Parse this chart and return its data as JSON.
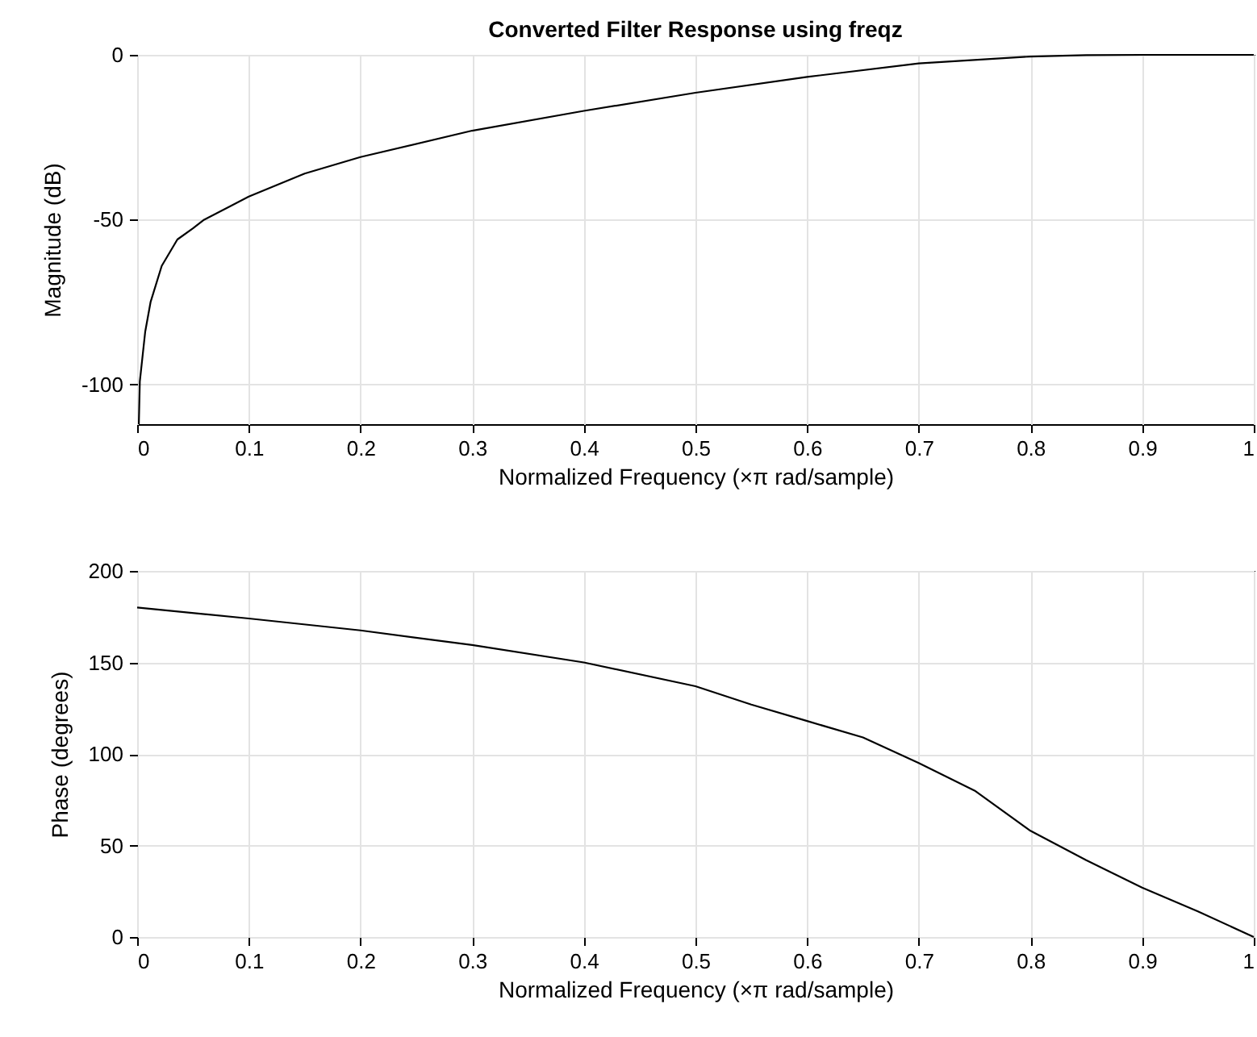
{
  "chart_data": [
    {
      "type": "line",
      "title": "Converted Filter Response using freqz",
      "xlabel": "Normalized Frequency (×π rad/sample)",
      "ylabel": "Magnitude (dB)",
      "x": [
        0.0015,
        0.0024,
        0.0072,
        0.012,
        0.022,
        0.036,
        0.05,
        0.06,
        0.1,
        0.15,
        0.2,
        0.3,
        0.4,
        0.5,
        0.6,
        0.7,
        0.8,
        0.85,
        0.9,
        1
      ],
      "series": [
        {
          "color": "#000000",
          "values": [
            -112,
            -99,
            -84,
            -75,
            -64,
            -56,
            -52.6,
            -50,
            -43,
            -36,
            -31,
            -23,
            -17,
            -11.5,
            -6.7,
            -2.6,
            -0.5,
            -0.1,
            0,
            0
          ]
        }
      ],
      "xlim": [
        0,
        1
      ],
      "xticks": [
        0,
        0.1,
        0.2,
        0.3,
        0.4,
        0.5,
        0.6,
        0.7,
        0.8,
        0.9,
        1
      ],
      "ylim": [
        -112,
        0
      ],
      "yticks": [
        -100,
        -50,
        0
      ],
      "grid": true
    },
    {
      "type": "line",
      "xlabel": "Normalized Frequency (×π rad/sample)",
      "ylabel": "Phase (degrees)",
      "x": [
        0,
        0.1,
        0.2,
        0.3,
        0.4,
        0.5,
        0.55,
        0.6,
        0.65,
        0.7,
        0.75,
        0.8,
        0.85,
        0.9,
        0.95,
        1
      ],
      "series": [
        {
          "color": "#000000",
          "values": [
            180,
            174,
            167.5,
            159.5,
            150,
            137,
            127,
            118,
            109,
            95,
            80,
            58,
            42,
            27,
            14,
            0
          ]
        }
      ],
      "xlim": [
        0,
        1
      ],
      "xticks": [
        0,
        0.1,
        0.2,
        0.3,
        0.4,
        0.5,
        0.6,
        0.7,
        0.8,
        0.9,
        1
      ],
      "ylim": [
        0,
        200
      ],
      "yticks": [
        0,
        50,
        100,
        150,
        200
      ],
      "grid": true
    }
  ]
}
